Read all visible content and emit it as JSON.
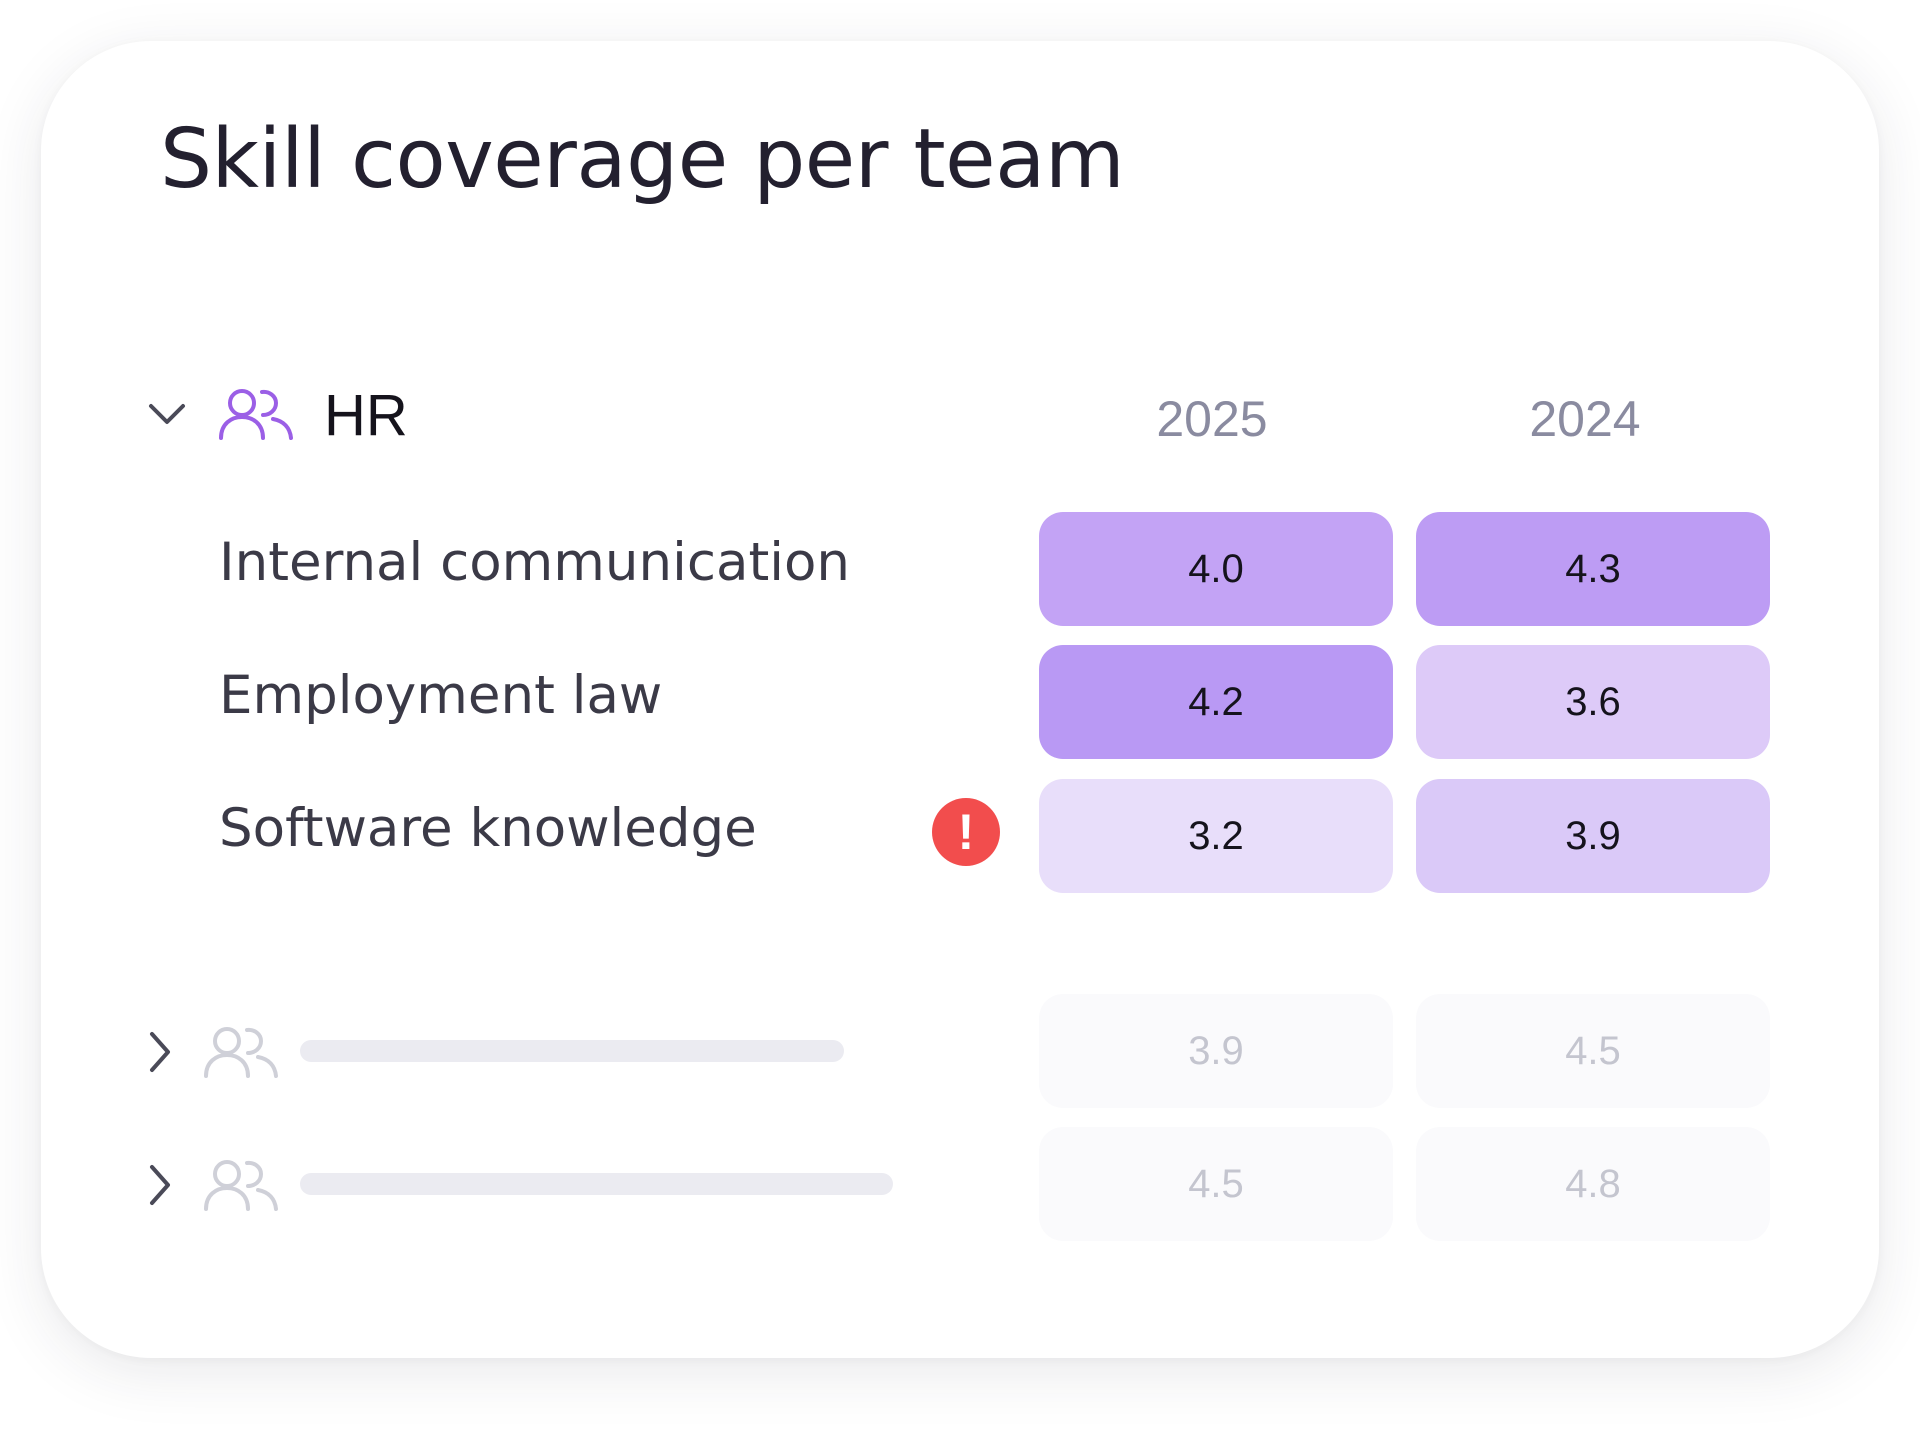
{
  "title": "Skill coverage per team",
  "colors": {
    "accent": "#9b5fe6",
    "alert": "#f24d4d",
    "cell_scale": [
      "#e8defa",
      "#ddcaf8",
      "#c3a3f5",
      "#b999f4"
    ]
  },
  "years": [
    "2025",
    "2024"
  ],
  "team": {
    "name": "HR",
    "icon": "team-icon",
    "expanded": true,
    "skills": [
      {
        "label": "Internal communication",
        "values": [
          "4.0",
          "4.3"
        ],
        "alert": false
      },
      {
        "label": "Employment law",
        "values": [
          "4.2",
          "3.6"
        ],
        "alert": false
      },
      {
        "label": "Software knowledge",
        "values": [
          "3.2",
          "3.9"
        ],
        "alert": true
      }
    ]
  },
  "alert_icon": {
    "glyph": "!",
    "name": "alert-icon"
  },
  "collapsed_teams": [
    {
      "values": [
        "3.9",
        "4.5"
      ]
    },
    {
      "values": [
        "4.5",
        "4.8"
      ]
    }
  ]
}
